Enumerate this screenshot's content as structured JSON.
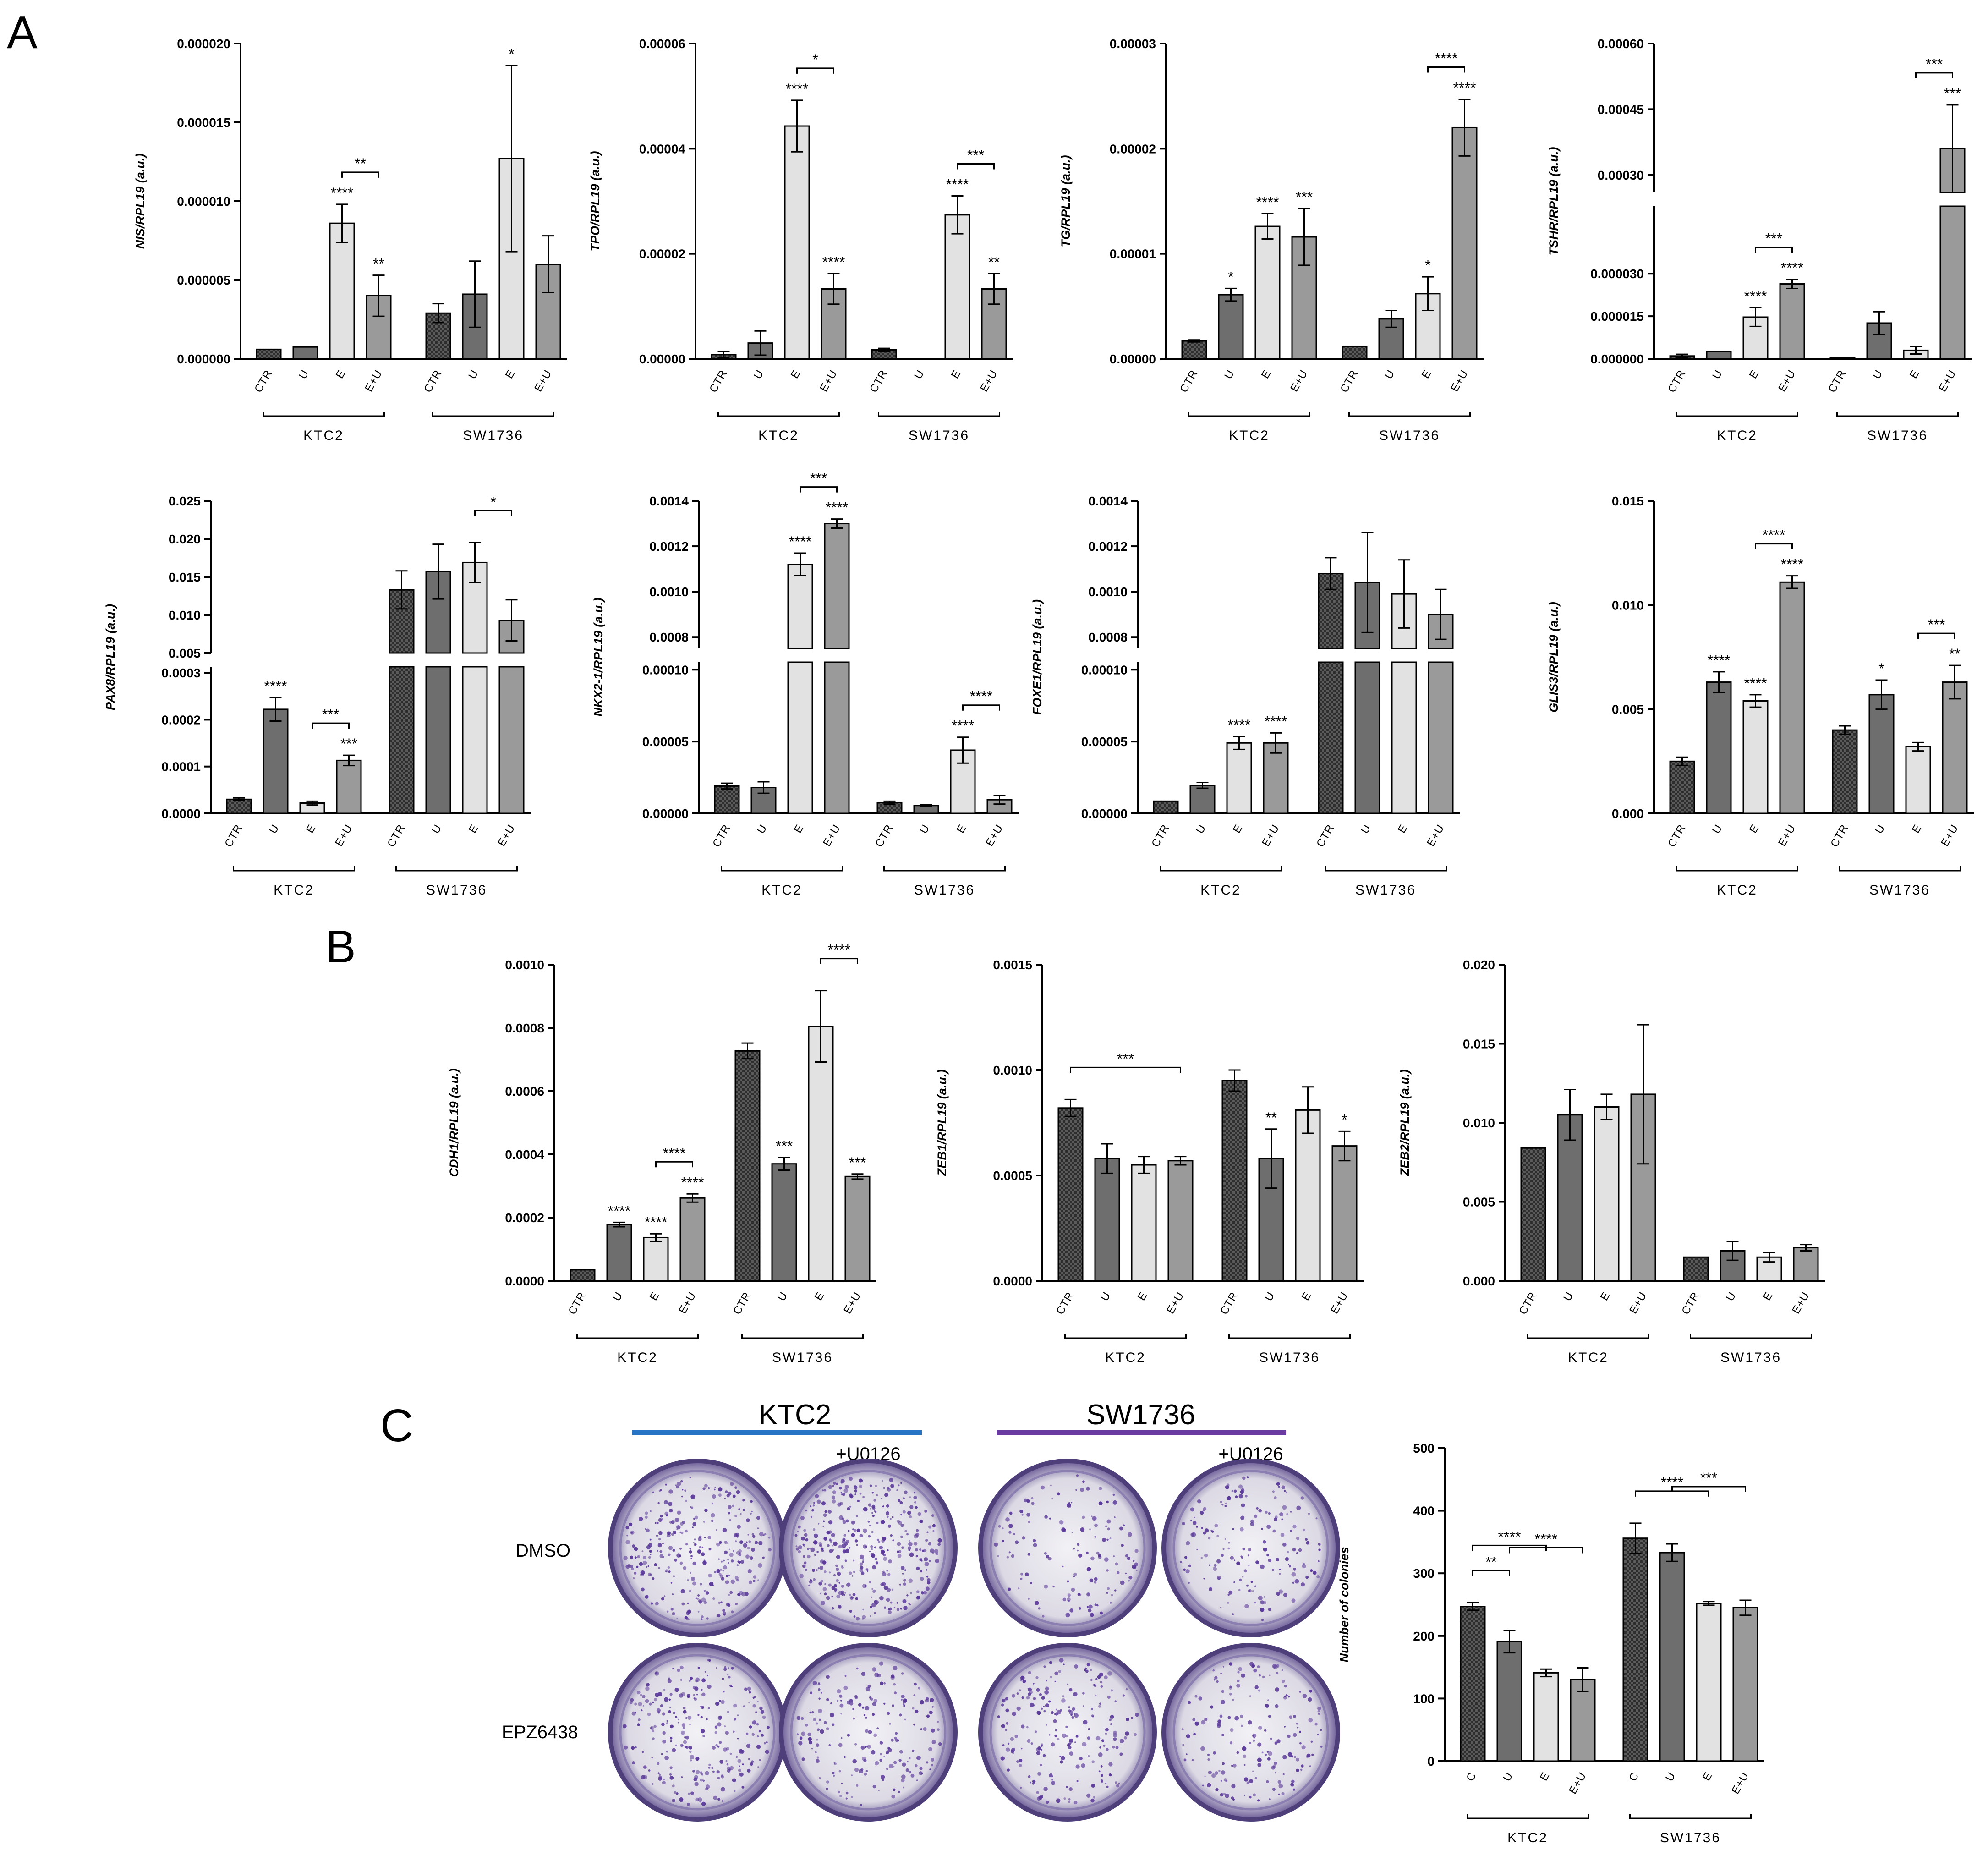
{
  "figure": {
    "panels": [
      "A",
      "B",
      "C"
    ],
    "category_labels": [
      "CTR",
      "U",
      "E",
      "E+U"
    ],
    "groups": [
      "KTC2",
      "SW1736"
    ],
    "colors": {
      "ctr": "#3a3a3a",
      "u": "#6e6e6e",
      "e": "#e2e2e2",
      "eu": "#9a9a9a",
      "ktc2_line": "#2874c4",
      "sw1736_line": "#6b3aa0"
    }
  },
  "chart_data": [
    {
      "type": "bar",
      "panel": "A",
      "ylabel": "NIS/RPL19 (a.u.)",
      "categories": [
        "CTR",
        "U",
        "E",
        "E+U"
      ],
      "groups": [
        "KTC2",
        "SW1736"
      ],
      "yticks": [
        "0.000000",
        "0.000005",
        "0.000010",
        "0.000015",
        "0.000020"
      ],
      "ylim": [
        0,
        2e-05
      ],
      "series": [
        {
          "name": "KTC2",
          "values": [
            6e-07,
            7.5e-07,
            8.6e-06,
            4e-06
          ],
          "errors": [
            0,
            0,
            1.2e-06,
            1.3e-06
          ]
        },
        {
          "name": "SW1736",
          "values": [
            2.9e-06,
            4.1e-06,
            1.27e-05,
            6e-06
          ],
          "errors": [
            6e-07,
            2.1e-06,
            5.9e-06,
            1.8e-06
          ]
        }
      ],
      "annotations": [
        {
          "group": 0,
          "bar": 2,
          "text": "****"
        },
        {
          "group": 0,
          "bar": 3,
          "text": "**"
        },
        {
          "group": 0,
          "from": 2,
          "to": 3,
          "text": "**"
        },
        {
          "group": 1,
          "bar": 2,
          "text": "*"
        }
      ]
    },
    {
      "type": "bar",
      "panel": "A",
      "ylabel": "TPO/RPL19 (a.u.)",
      "categories": [
        "CTR",
        "U",
        "E",
        "E+U"
      ],
      "groups": [
        "KTC2",
        "SW1736"
      ],
      "yticks": [
        "0.00000",
        "0.00002",
        "0.00004",
        "0.00006"
      ],
      "ylim": [
        0,
        6e-05
      ],
      "series": [
        {
          "name": "KTC2",
          "values": [
            8e-07,
            3e-06,
            4.43e-05,
            1.33e-05
          ],
          "errors": [
            6e-07,
            2.3e-06,
            4.9e-06,
            2.9e-06
          ]
        },
        {
          "name": "SW1736",
          "values": [
            1.7e-06,
            0,
            2.74e-05,
            1.33e-05
          ],
          "errors": [
            3e-07,
            0,
            3.6e-06,
            2.9e-06
          ]
        }
      ],
      "annotations": [
        {
          "group": 0,
          "bar": 2,
          "text": "****"
        },
        {
          "group": 0,
          "bar": 3,
          "text": "****"
        },
        {
          "group": 0,
          "from": 2,
          "to": 3,
          "text": "*"
        },
        {
          "group": 1,
          "bar": 2,
          "text": "****"
        },
        {
          "group": 1,
          "bar": 3,
          "text": "**"
        },
        {
          "group": 1,
          "from": 2,
          "to": 3,
          "text": "***"
        }
      ]
    },
    {
      "type": "bar",
      "panel": "A",
      "ylabel": "TG/RPL19 (a.u.)",
      "categories": [
        "CTR",
        "U",
        "E",
        "E+U"
      ],
      "groups": [
        "KTC2",
        "SW1736"
      ],
      "yticks": [
        "0.00000",
        "0.00001",
        "0.00002",
        "0.00003"
      ],
      "ylim": [
        0,
        3e-05
      ],
      "series": [
        {
          "name": "KTC2",
          "values": [
            1.7e-06,
            6.1e-06,
            1.26e-05,
            1.16e-05
          ],
          "errors": [
            1e-07,
            6e-07,
            1.2e-06,
            2.7e-06
          ]
        },
        {
          "name": "SW1736",
          "values": [
            1.2e-06,
            3.8e-06,
            6.2e-06,
            2.2e-05
          ],
          "errors": [
            0,
            8e-07,
            1.6e-06,
            2.7e-06
          ]
        }
      ],
      "annotations": [
        {
          "group": 0,
          "bar": 1,
          "text": "*"
        },
        {
          "group": 0,
          "bar": 2,
          "text": "****"
        },
        {
          "group": 0,
          "bar": 3,
          "text": "***"
        },
        {
          "group": 1,
          "bar": 2,
          "text": "*"
        },
        {
          "group": 1,
          "bar": 3,
          "text": "****"
        },
        {
          "group": 1,
          "from": 2,
          "to": 3,
          "text": "****"
        }
      ]
    },
    {
      "type": "bar",
      "panel": "A",
      "ylabel": "TSHR/RPL19 (a.u.)",
      "broken_axis": true,
      "categories": [
        "CTR",
        "U",
        "E",
        "E+U"
      ],
      "groups": [
        "KTC2",
        "SW1736"
      ],
      "yticks_lower": [
        "0.000000",
        "0.000015",
        "0.000030"
      ],
      "yticks_upper": [
        "0.00030",
        "0.00045",
        "0.00060"
      ],
      "ylim_lower": [
        0,
        3e-05
      ],
      "ylim_upper": [
        0.00026,
        0.0006
      ],
      "series": [
        {
          "name": "KTC2",
          "values": [
            1e-06,
            2.5e-06,
            1.47e-05,
            2.64e-05
          ],
          "errors": [
            6e-07,
            0,
            3.3e-06,
            1.6e-06
          ]
        },
        {
          "name": "SW1736",
          "values": [
            3e-07,
            1.26e-05,
            3e-06,
            0.00036
          ],
          "errors": [
            0,
            4e-06,
            1.3e-06,
            0.0001
          ]
        }
      ],
      "annotations": [
        {
          "group": 0,
          "bar": 2,
          "text": "****"
        },
        {
          "group": 0,
          "bar": 3,
          "text": "****"
        },
        {
          "group": 0,
          "from": 2,
          "to": 3,
          "text": "***"
        },
        {
          "group": 1,
          "bar": 3,
          "text": "***"
        },
        {
          "group": 1,
          "from": 2,
          "to": 3,
          "text": "***"
        }
      ]
    },
    {
      "type": "bar",
      "panel": "A",
      "ylabel": "PAX8/RPL19 (a.u.)",
      "broken_axis": true,
      "categories": [
        "CTR",
        "U",
        "E",
        "E+U"
      ],
      "groups": [
        "KTC2",
        "SW1736"
      ],
      "yticks_lower": [
        "0.0000",
        "0.0001",
        "0.0002",
        "0.0003"
      ],
      "yticks_upper": [
        "0.005",
        "0.010",
        "0.015",
        "0.020",
        "0.025"
      ],
      "ylim_lower": [
        0,
        0.0003
      ],
      "ylim_upper": [
        0.005,
        0.025
      ],
      "series": [
        {
          "name": "KTC2",
          "values": [
            3e-05,
            0.000222,
            2.2e-05,
            0.000113
          ],
          "errors": [
            3e-06,
            2.5e-05,
            4e-06,
            1.1e-05
          ]
        },
        {
          "name": "SW1736",
          "values": [
            0.0133,
            0.0157,
            0.0169,
            0.0093
          ],
          "errors": [
            0.0025,
            0.0036,
            0.0026,
            0.0027
          ]
        }
      ],
      "annotations": [
        {
          "group": 0,
          "bar": 1,
          "text": "****"
        },
        {
          "group": 0,
          "bar": 3,
          "text": "***"
        },
        {
          "group": 0,
          "from": 2,
          "to": 3,
          "text": "***"
        },
        {
          "group": 1,
          "from": 2,
          "to": 3,
          "text": "*"
        }
      ]
    },
    {
      "type": "bar",
      "panel": "A",
      "ylabel": "NKX2-1/RPL19 (a.u.)",
      "broken_axis": true,
      "categories": [
        "CTR",
        "U",
        "E",
        "E+U"
      ],
      "groups": [
        "KTC2",
        "SW1736"
      ],
      "yticks_lower": [
        "0.00000",
        "0.00005",
        "0.00010"
      ],
      "yticks_upper": [
        "0.0008",
        "0.0010",
        "0.0012",
        "0.0014"
      ],
      "ylim_lower": [
        0,
        0.0001
      ],
      "ylim_upper": [
        0.00075,
        0.0014
      ],
      "series": [
        {
          "name": "KTC2",
          "values": [
            1.9e-05,
            1.8e-05,
            0.00112,
            0.0013
          ],
          "errors": [
            2e-06,
            4e-06,
            5e-05,
            2e-05
          ]
        },
        {
          "name": "SW1736",
          "values": [
            7.5e-06,
            5.5e-06,
            4.4e-05,
            9.5e-06
          ],
          "errors": [
            1e-06,
            5e-07,
            9e-06,
            3e-06
          ]
        }
      ],
      "annotations": [
        {
          "group": 0,
          "bar": 2,
          "text": "****"
        },
        {
          "group": 0,
          "bar": 3,
          "text": "****"
        },
        {
          "group": 0,
          "from": 2,
          "to": 3,
          "text": "***"
        },
        {
          "group": 1,
          "bar": 2,
          "text": "****"
        },
        {
          "group": 1,
          "from": 2,
          "to": 3,
          "text": "****"
        }
      ]
    },
    {
      "type": "bar",
      "panel": "A",
      "ylabel": "FOXE1/RPL19 (a.u.)",
      "broken_axis": true,
      "categories": [
        "CTR",
        "U",
        "E",
        "E+U"
      ],
      "groups": [
        "KTC2",
        "SW1736"
      ],
      "yticks_lower": [
        "0.00000",
        "0.00005",
        "0.00010"
      ],
      "yticks_upper": [
        "0.0008",
        "0.0010",
        "0.0012",
        "0.0014"
      ],
      "ylim_lower": [
        0,
        0.0001
      ],
      "ylim_upper": [
        0.00075,
        0.0014
      ],
      "series": [
        {
          "name": "KTC2",
          "values": [
            8.5e-06,
            1.95e-05,
            4.9e-05,
            4.9e-05
          ],
          "errors": [
            0,
            2e-06,
            4.5e-06,
            7e-06
          ]
        },
        {
          "name": "SW1736",
          "values": [
            0.00108,
            0.00104,
            0.00099,
            0.0009
          ],
          "errors": [
            7e-05,
            0.00022,
            0.00015,
            0.00011
          ]
        }
      ],
      "annotations": [
        {
          "group": 0,
          "bar": 2,
          "text": "****"
        },
        {
          "group": 0,
          "bar": 3,
          "text": "****"
        }
      ]
    },
    {
      "type": "bar",
      "panel": "A",
      "ylabel": "GLIS3/RPL19 (a.u.)",
      "categories": [
        "CTR",
        "U",
        "E",
        "E+U"
      ],
      "groups": [
        "KTC2",
        "SW1736"
      ],
      "yticks": [
        "0.000",
        "0.005",
        "0.010",
        "0.015"
      ],
      "ylim": [
        0,
        0.015
      ],
      "series": [
        {
          "name": "KTC2",
          "values": [
            0.0025,
            0.0063,
            0.0054,
            0.0111
          ],
          "errors": [
            0.0002,
            0.0005,
            0.0003,
            0.0003
          ]
        },
        {
          "name": "SW1736",
          "values": [
            0.004,
            0.0057,
            0.0032,
            0.0063
          ],
          "errors": [
            0.0002,
            0.0007,
            0.0002,
            0.0008
          ]
        }
      ],
      "annotations": [
        {
          "group": 0,
          "bar": 1,
          "text": "****"
        },
        {
          "group": 0,
          "bar": 2,
          "text": "****"
        },
        {
          "group": 0,
          "bar": 3,
          "text": "****"
        },
        {
          "group": 0,
          "from": 2,
          "to": 3,
          "text": "****"
        },
        {
          "group": 1,
          "bar": 1,
          "text": "*"
        },
        {
          "group": 1,
          "bar": 3,
          "text": "**"
        },
        {
          "group": 1,
          "from": 2,
          "to": 3,
          "text": "***"
        }
      ]
    },
    {
      "type": "bar",
      "panel": "B",
      "ylabel": "CDH1/RPL19 (a.u.)",
      "categories": [
        "CTR",
        "U",
        "E",
        "E+U"
      ],
      "groups": [
        "KTC2",
        "SW1736"
      ],
      "yticks": [
        "0.0000",
        "0.0002",
        "0.0004",
        "0.0006",
        "0.0008",
        "0.0010"
      ],
      "ylim": [
        0,
        0.001
      ],
      "series": [
        {
          "name": "KTC2",
          "values": [
            3.5e-05,
            0.000178,
            0.000137,
            0.000262
          ],
          "errors": [
            0,
            7e-06,
            1.2e-05,
            1.3e-05
          ]
        },
        {
          "name": "SW1736",
          "values": [
            0.000727,
            0.00037,
            0.000805,
            0.00033
          ],
          "errors": [
            2.5e-05,
            2e-05,
            0.000113,
            8e-06
          ]
        }
      ],
      "annotations": [
        {
          "group": 0,
          "bar": 1,
          "text": "****"
        },
        {
          "group": 0,
          "bar": 2,
          "text": "****"
        },
        {
          "group": 0,
          "bar": 3,
          "text": "****"
        },
        {
          "group": 0,
          "from": 2,
          "to": 3,
          "text": "****"
        },
        {
          "group": 1,
          "bar": 1,
          "text": "***"
        },
        {
          "group": 1,
          "bar": 3,
          "text": "***"
        },
        {
          "group": 1,
          "from": 2,
          "to": 3,
          "text": "****"
        }
      ]
    },
    {
      "type": "bar",
      "panel": "B",
      "ylabel": "ZEB1/RPL19 (a.u.)",
      "categories": [
        "CTR",
        "U",
        "E",
        "E+U"
      ],
      "groups": [
        "KTC2",
        "SW1736"
      ],
      "yticks": [
        "0.0000",
        "0.0005",
        "0.0010",
        "0.0015"
      ],
      "ylim": [
        0,
        0.0015
      ],
      "series": [
        {
          "name": "KTC2",
          "values": [
            0.00082,
            0.00058,
            0.00055,
            0.00057
          ],
          "errors": [
            4e-05,
            7e-05,
            4e-05,
            2e-05
          ]
        },
        {
          "name": "SW1736",
          "values": [
            0.00095,
            0.00058,
            0.00081,
            0.00064
          ],
          "errors": [
            5e-05,
            0.00014,
            0.00011,
            7e-05
          ]
        }
      ],
      "annotations": [
        {
          "group": 0,
          "from": 0,
          "to": 3,
          "text": "***"
        },
        {
          "group": 1,
          "bar": 1,
          "text": "**"
        },
        {
          "group": 1,
          "bar": 3,
          "text": "*"
        }
      ]
    },
    {
      "type": "bar",
      "panel": "B",
      "ylabel": "ZEB2/RPL19 (a.u.)",
      "categories": [
        "CTR",
        "U",
        "E",
        "E+U"
      ],
      "groups": [
        "KTC2",
        "SW1736"
      ],
      "yticks": [
        "0.000",
        "0.005",
        "0.010",
        "0.015",
        "0.020"
      ],
      "ylim": [
        0,
        0.02
      ],
      "series": [
        {
          "name": "KTC2",
          "values": [
            0.0084,
            0.0105,
            0.011,
            0.0118
          ],
          "errors": [
            0,
            0.0016,
            0.0008,
            0.0044
          ]
        },
        {
          "name": "SW1736",
          "values": [
            0.0015,
            0.0019,
            0.0015,
            0.0021
          ],
          "errors": [
            0,
            0.0006,
            0.0003,
            0.0002
          ]
        }
      ],
      "annotations": []
    },
    {
      "type": "bar",
      "panel": "C",
      "ylabel": "Number of colonies",
      "categories": [
        "C",
        "U",
        "E",
        "E+U"
      ],
      "groups": [
        "KTC2",
        "SW1736"
      ],
      "yticks": [
        "0",
        "100",
        "200",
        "300",
        "400",
        "500"
      ],
      "ylim": [
        0,
        500
      ],
      "series": [
        {
          "name": "KTC2",
          "values": [
            247,
            191,
            141,
            130
          ],
          "errors": [
            6,
            18,
            6,
            19
          ]
        },
        {
          "name": "SW1736",
          "values": [
            356,
            333,
            252,
            245
          ],
          "errors": [
            24,
            14,
            3,
            12
          ]
        }
      ],
      "annotations": [
        {
          "group": 0,
          "from": 0,
          "to": 1,
          "text": "**"
        },
        {
          "group": 0,
          "from": 0,
          "to": 2,
          "text": "****"
        },
        {
          "group": 0,
          "from": 1,
          "to": 3,
          "text": "****"
        },
        {
          "group": 1,
          "from": 0,
          "to": 2,
          "text": "****"
        },
        {
          "group": 1,
          "from": 1,
          "to": 3,
          "text": "***"
        }
      ]
    }
  ],
  "colony_assay": {
    "lines": [
      "KTC2",
      "SW1736"
    ],
    "treatment_label": "+U0126",
    "rows": [
      "DMSO",
      "EPZ6438"
    ]
  }
}
